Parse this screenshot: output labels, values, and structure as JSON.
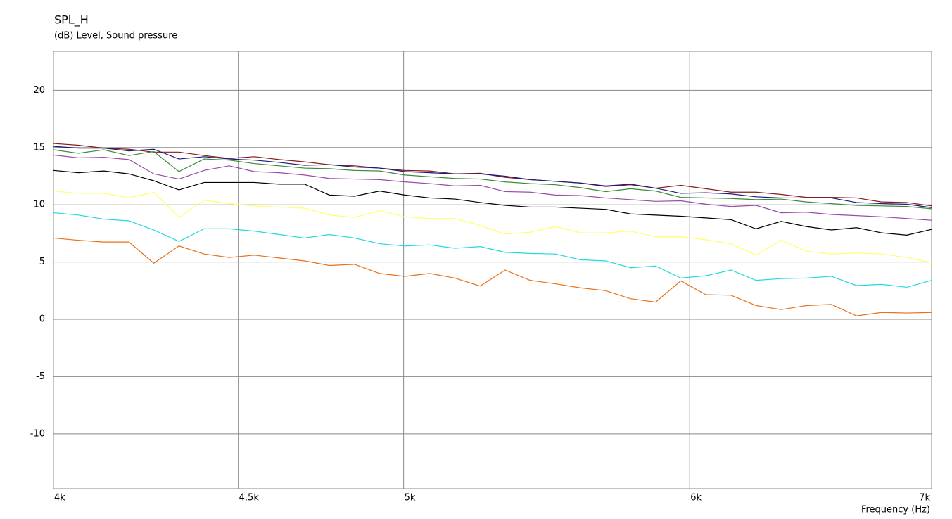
{
  "chart_data": {
    "type": "line",
    "title": "SPL_H",
    "ylabel": "(dB)  Level, Sound pressure",
    "xlabel": "Frequency  (Hz)",
    "xscale": "log",
    "grid": true,
    "xlim": [
      4000,
      7000
    ],
    "ylim": [
      -14.8,
      23.4
    ],
    "xticks": [
      {
        "value": 4000,
        "label": "4k"
      },
      {
        "value": 4500,
        "label": "4.5k"
      },
      {
        "value": 5000,
        "label": "5k"
      },
      {
        "value": 6000,
        "label": "6k"
      },
      {
        "value": 7000,
        "label": "7k"
      }
    ],
    "yticks": [
      20,
      15,
      10,
      5,
      0,
      -5,
      -10
    ],
    "x": [
      4000,
      4064,
      4130,
      4197,
      4264,
      4333,
      4403,
      4474,
      4546,
      4619,
      4694,
      4769,
      4846,
      4924,
      5004,
      5084,
      5166,
      5250,
      5334,
      5420,
      5508,
      5596,
      5687,
      5778,
      5871,
      5966,
      6062,
      6160,
      6259,
      6360,
      6463,
      6567,
      6673,
      6780,
      6890,
      7000
    ],
    "series": [
      {
        "color": "#8b1a1a",
        "values": [
          15.35,
          15.2,
          14.95,
          14.85,
          14.6,
          14.6,
          14.3,
          14.05,
          14.2,
          13.95,
          13.75,
          13.5,
          13.4,
          13.2,
          13.0,
          12.95,
          12.7,
          12.75,
          12.4,
          12.2,
          12.05,
          11.9,
          11.6,
          11.75,
          11.45,
          11.7,
          11.4,
          11.1,
          11.1,
          10.9,
          10.65,
          10.65,
          10.6,
          10.25,
          10.2,
          9.9
        ]
      },
      {
        "color": "#1a1a80",
        "values": [
          15.1,
          14.95,
          14.95,
          14.7,
          14.85,
          14.0,
          14.2,
          14.0,
          13.9,
          13.7,
          13.45,
          13.5,
          13.3,
          13.2,
          12.9,
          12.8,
          12.7,
          12.7,
          12.5,
          12.2,
          12.05,
          11.9,
          11.65,
          11.8,
          11.45,
          11.0,
          11.05,
          10.95,
          10.7,
          10.6,
          10.6,
          10.6,
          10.2,
          10.1,
          10.05,
          9.75
        ]
      },
      {
        "color": "#3a8a3a",
        "values": [
          14.8,
          14.5,
          14.8,
          14.3,
          14.65,
          12.9,
          14.0,
          13.9,
          13.6,
          13.4,
          13.2,
          13.15,
          13.0,
          12.95,
          12.6,
          12.45,
          12.3,
          12.25,
          12.0,
          11.85,
          11.75,
          11.5,
          11.15,
          11.4,
          11.2,
          10.65,
          10.6,
          10.55,
          10.45,
          10.5,
          10.25,
          10.1,
          9.95,
          9.9,
          9.85,
          9.65
        ]
      },
      {
        "color": "#9a4aa8",
        "values": [
          14.35,
          14.1,
          14.15,
          13.95,
          12.7,
          12.25,
          13.0,
          13.4,
          12.9,
          12.8,
          12.6,
          12.3,
          12.25,
          12.2,
          12.0,
          11.85,
          11.65,
          11.7,
          11.15,
          11.1,
          10.85,
          10.8,
          10.6,
          10.45,
          10.3,
          10.35,
          10.05,
          9.85,
          9.95,
          9.3,
          9.35,
          9.15,
          9.05,
          8.95,
          8.8,
          8.65
        ]
      },
      {
        "color": "#000000",
        "values": [
          13.0,
          12.8,
          12.95,
          12.7,
          12.1,
          11.3,
          11.95,
          11.95,
          11.95,
          11.8,
          11.8,
          10.85,
          10.75,
          11.2,
          10.85,
          10.6,
          10.5,
          10.2,
          9.95,
          9.8,
          9.8,
          9.7,
          9.6,
          9.2,
          9.1,
          9.0,
          8.85,
          8.7,
          7.9,
          8.55,
          8.1,
          7.8,
          8.0,
          7.55,
          7.35,
          7.85
        ]
      },
      {
        "color": "#ffff66",
        "values": [
          11.2,
          11.0,
          11.0,
          10.6,
          11.1,
          8.9,
          10.4,
          10.1,
          9.9,
          9.8,
          9.7,
          9.1,
          8.9,
          9.5,
          8.95,
          8.8,
          8.8,
          8.2,
          7.45,
          7.6,
          8.1,
          7.55,
          7.55,
          7.7,
          7.2,
          7.2,
          6.95,
          6.6,
          5.6,
          6.9,
          5.95,
          5.7,
          5.8,
          5.7,
          5.4,
          4.95
        ]
      },
      {
        "color": "#22d8e0",
        "values": [
          9.3,
          9.1,
          8.75,
          8.6,
          7.8,
          6.8,
          7.9,
          7.9,
          7.7,
          7.4,
          7.1,
          7.4,
          7.1,
          6.6,
          6.4,
          6.5,
          6.2,
          6.35,
          5.85,
          5.75,
          5.7,
          5.2,
          5.1,
          4.5,
          4.65,
          3.6,
          3.8,
          4.3,
          3.4,
          3.55,
          3.6,
          3.75,
          2.95,
          3.05,
          2.8,
          3.4
        ]
      },
      {
        "color": "#e8701a",
        "values": [
          7.1,
          6.9,
          6.75,
          6.75,
          4.9,
          6.4,
          5.7,
          5.4,
          5.6,
          5.35,
          5.1,
          4.7,
          4.8,
          4.0,
          3.75,
          4.0,
          3.6,
          2.9,
          4.3,
          3.4,
          3.1,
          2.75,
          2.5,
          1.8,
          1.5,
          3.35,
          2.15,
          2.1,
          1.2,
          0.85,
          1.2,
          1.3,
          0.3,
          0.6,
          0.55,
          0.6
        ]
      }
    ]
  }
}
